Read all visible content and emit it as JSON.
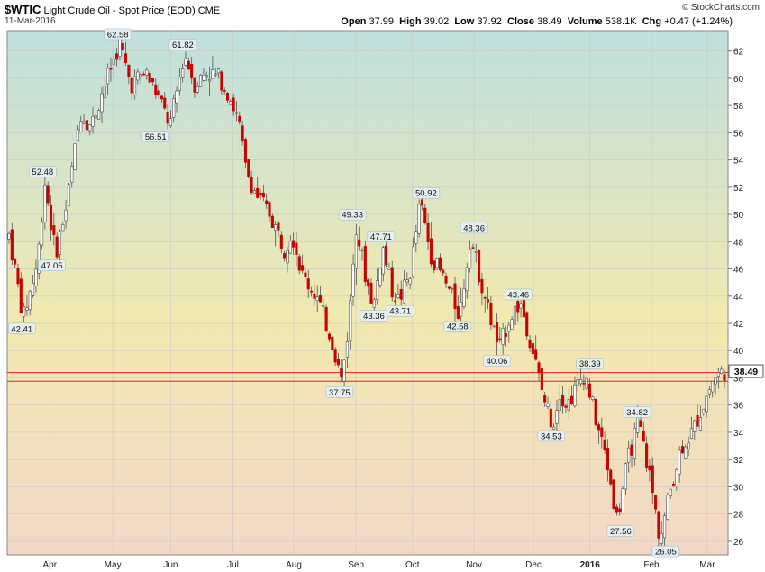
{
  "header": {
    "symbol": "$WTIC",
    "description": "Light Crude Oil - Spot Price (EOD)",
    "exchange": "CME",
    "date": "11-Mar-2016",
    "open_label": "Open",
    "open": "37.99",
    "high_label": "High",
    "high": "39.02",
    "low_label": "Low",
    "low": "37.92",
    "close_label": "Close",
    "close": "38.49",
    "volume_label": "Volume",
    "volume": "538.1K",
    "chg_label": "Chg",
    "chg": "+0.47 (+1.24%)",
    "watermark": "© StockCharts.com"
  },
  "colors": {
    "candle": "#cc0000",
    "wick": "#555555",
    "hline": "#dd2222",
    "bg_top": "#bfe0dd",
    "bg_mid": "#f1e9b0",
    "bg_bottom": "#f3d8c6"
  },
  "chart_data": {
    "type": "candlestick",
    "ylim": [
      25,
      63.5
    ],
    "yticks": [
      26,
      28,
      30,
      32,
      34,
      36,
      38,
      40,
      42,
      44,
      46,
      48,
      50,
      52,
      54,
      56,
      58,
      60,
      62
    ],
    "xticks": [
      {
        "label": "Apr",
        "t": 0.057,
        "bold": false
      },
      {
        "label": "May",
        "t": 0.145,
        "bold": false
      },
      {
        "label": "Jun",
        "t": 0.226,
        "bold": false
      },
      {
        "label": "Jul",
        "t": 0.313,
        "bold": false
      },
      {
        "label": "Aug",
        "t": 0.398,
        "bold": false
      },
      {
        "label": "Sep",
        "t": 0.485,
        "bold": false
      },
      {
        "label": "Oct",
        "t": 0.564,
        "bold": false
      },
      {
        "label": "Nov",
        "t": 0.65,
        "bold": false
      },
      {
        "label": "Dec",
        "t": 0.733,
        "bold": false
      },
      {
        "label": "2016",
        "t": 0.812,
        "bold": true
      },
      {
        "label": "Feb",
        "t": 0.898,
        "bold": false
      },
      {
        "label": "Mar",
        "t": 0.976,
        "bold": false
      }
    ],
    "path": [
      [
        0,
        48.5
      ],
      [
        0.02,
        42.4
      ],
      [
        0.04,
        46.5
      ],
      [
        0.05,
        52.5
      ],
      [
        0.065,
        47.1
      ],
      [
        0.08,
        50.5
      ],
      [
        0.1,
        57.5
      ],
      [
        0.115,
        56.5
      ],
      [
        0.13,
        59
      ],
      [
        0.155,
        62.6
      ],
      [
        0.17,
        59.5
      ],
      [
        0.19,
        60.5
      ],
      [
        0.21,
        58.5
      ],
      [
        0.225,
        56.5
      ],
      [
        0.245,
        61.8
      ],
      [
        0.26,
        59.5
      ],
      [
        0.275,
        60.5
      ],
      [
        0.295,
        60
      ],
      [
        0.31,
        58.5
      ],
      [
        0.322,
        56.5
      ],
      [
        0.33,
        53.5
      ],
      [
        0.345,
        51.5
      ],
      [
        0.365,
        50
      ],
      [
        0.385,
        47.5
      ],
      [
        0.395,
        48.8
      ],
      [
        0.41,
        45.5
      ],
      [
        0.43,
        44
      ],
      [
        0.45,
        41
      ],
      [
        0.465,
        37.8
      ],
      [
        0.475,
        42
      ],
      [
        0.485,
        49.3
      ],
      [
        0.5,
        45
      ],
      [
        0.51,
        43.4
      ],
      [
        0.522,
        47.7
      ],
      [
        0.535,
        44.5
      ],
      [
        0.545,
        43.7
      ],
      [
        0.56,
        45.5
      ],
      [
        0.575,
        50.9
      ],
      [
        0.59,
        47
      ],
      [
        0.61,
        45
      ],
      [
        0.63,
        42.6
      ],
      [
        0.645,
        48.4
      ],
      [
        0.66,
        45
      ],
      [
        0.675,
        42
      ],
      [
        0.685,
        40.1
      ],
      [
        0.7,
        42.5
      ],
      [
        0.715,
        43.5
      ],
      [
        0.73,
        40.5
      ],
      [
        0.745,
        37
      ],
      [
        0.76,
        34.5
      ],
      [
        0.77,
        37
      ],
      [
        0.78,
        36
      ],
      [
        0.795,
        37.5
      ],
      [
        0.805,
        38.4
      ],
      [
        0.82,
        35
      ],
      [
        0.835,
        32
      ],
      [
        0.85,
        27.6
      ],
      [
        0.865,
        32
      ],
      [
        0.88,
        34.8
      ],
      [
        0.895,
        31
      ],
      [
        0.91,
        26.1
      ],
      [
        0.925,
        30
      ],
      [
        0.94,
        33
      ],
      [
        0.955,
        34
      ],
      [
        0.97,
        36
      ],
      [
        0.985,
        38
      ],
      [
        1.0,
        38.49
      ]
    ],
    "labels": [
      {
        "t": 0.018,
        "v": 42.41,
        "text": "42.41",
        "pos": "below"
      },
      {
        "t": 0.047,
        "v": 52.48,
        "text": "52.48",
        "pos": "above"
      },
      {
        "t": 0.06,
        "v": 47.05,
        "text": "47.05",
        "pos": "below"
      },
      {
        "t": 0.152,
        "v": 62.58,
        "text": "62.58",
        "pos": "above"
      },
      {
        "t": 0.205,
        "v": 56.51,
        "text": "56.51",
        "pos": "below"
      },
      {
        "t": 0.243,
        "v": 61.82,
        "text": "61.82",
        "pos": "above"
      },
      {
        "t": 0.462,
        "v": 37.75,
        "text": "37.75",
        "pos": "below"
      },
      {
        "t": 0.48,
        "v": 49.33,
        "text": "49.33",
        "pos": "above"
      },
      {
        "t": 0.51,
        "v": 43.36,
        "text": "43.36",
        "pos": "below"
      },
      {
        "t": 0.52,
        "v": 47.71,
        "text": "47.71",
        "pos": "above"
      },
      {
        "t": 0.547,
        "v": 43.71,
        "text": "43.71",
        "pos": "below"
      },
      {
        "t": 0.583,
        "v": 50.92,
        "text": "50.92",
        "pos": "above"
      },
      {
        "t": 0.627,
        "v": 42.58,
        "text": "42.58",
        "pos": "below"
      },
      {
        "t": 0.65,
        "v": 48.36,
        "text": "48.36",
        "pos": "above"
      },
      {
        "t": 0.682,
        "v": 40.06,
        "text": "40.06",
        "pos": "below"
      },
      {
        "t": 0.712,
        "v": 43.46,
        "text": "43.46",
        "pos": "above"
      },
      {
        "t": 0.758,
        "v": 34.53,
        "text": "34.53",
        "pos": "below"
      },
      {
        "t": 0.812,
        "v": 38.39,
        "text": "38.39",
        "pos": "above"
      },
      {
        "t": 0.855,
        "v": 27.56,
        "text": "27.56",
        "pos": "below"
      },
      {
        "t": 0.878,
        "v": 34.82,
        "text": "34.82",
        "pos": "above"
      },
      {
        "t": 0.918,
        "v": 26.05,
        "text": "26.05",
        "pos": "below"
      }
    ],
    "hlines": [
      37.75,
      38.39
    ],
    "last_value": "38.49"
  }
}
